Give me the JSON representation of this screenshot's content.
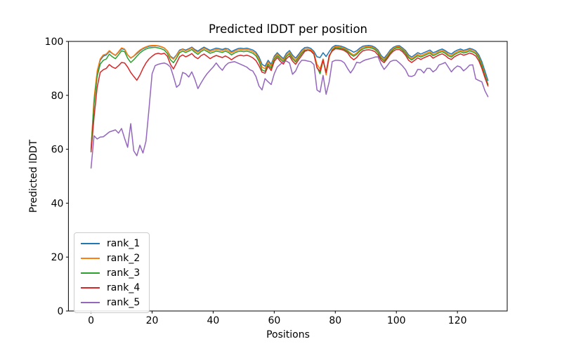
{
  "figure": {
    "title": "Predicted lDDT per position",
    "xlabel": "Positions",
    "ylabel": "Predicted lDDT"
  },
  "legend": {
    "items": [
      {
        "label": "rank_1",
        "color": "#1f77b4"
      },
      {
        "label": "rank_2",
        "color": "#ff7f0e"
      },
      {
        "label": "rank_3",
        "color": "#2ca02c"
      },
      {
        "label": "rank_4",
        "color": "#d62728"
      },
      {
        "label": "rank_5",
        "color": "#9467bd"
      }
    ]
  },
  "chart_data": {
    "type": "line",
    "title": "Predicted lDDT per position",
    "xlabel": "Positions",
    "ylabel": "Predicted lDDT",
    "xlim": [
      -7.4,
      136.3
    ],
    "ylim": [
      0,
      100
    ],
    "x_ticks": [
      0,
      20,
      40,
      60,
      80,
      100,
      120
    ],
    "y_ticks": [
      0,
      20,
      40,
      60,
      80,
      100
    ],
    "grid": false,
    "legend_position": "lower left",
    "x_start": 0,
    "x_step": 1,
    "series": [
      {
        "name": "rank_1",
        "color": "#1f77b4",
        "values": [
          60.0,
          78.0,
          88.0,
          93.0,
          94.5,
          95.0,
          96.3,
          95.5,
          94.8,
          96.0,
          97.3,
          97.0,
          95.0,
          93.8,
          94.5,
          95.5,
          96.5,
          97.3,
          97.8,
          98.2,
          98.3,
          98.4,
          98.3,
          98.0,
          97.5,
          96.5,
          94.5,
          93.7,
          95.0,
          96.8,
          97.2,
          96.8,
          97.3,
          97.9,
          97.0,
          96.4,
          97.2,
          97.9,
          97.3,
          96.7,
          97.1,
          97.5,
          97.3,
          97.0,
          97.4,
          97.2,
          96.2,
          96.8,
          97.3,
          97.5,
          97.3,
          97.5,
          97.2,
          96.8,
          96.0,
          94.3,
          91.5,
          90.8,
          93.0,
          91.5,
          94.5,
          95.8,
          94.6,
          93.6,
          95.6,
          96.6,
          94.9,
          93.8,
          95.2,
          96.8,
          97.7,
          97.8,
          97.4,
          96.3,
          94.3,
          94.0,
          95.8,
          94.4,
          96.2,
          97.8,
          98.5,
          98.4,
          98.2,
          97.8,
          97.2,
          96.7,
          96.0,
          96.5,
          97.5,
          98.2,
          98.4,
          98.5,
          98.3,
          97.8,
          96.8,
          94.8,
          93.8,
          95.2,
          96.8,
          97.8,
          98.3,
          98.4,
          97.6,
          96.6,
          95.0,
          94.2,
          95.0,
          95.8,
          95.3,
          95.8,
          96.3,
          96.8,
          95.8,
          96.2,
          96.8,
          97.2,
          96.6,
          95.8,
          95.3,
          96.2,
          96.8,
          97.2,
          96.7,
          97.0,
          97.4,
          97.1,
          96.5,
          95.0,
          92.5,
          89.0,
          85.5
        ]
      },
      {
        "name": "rank_2",
        "color": "#ff7f0e",
        "values": [
          60.5,
          79.0,
          89.0,
          93.5,
          95.0,
          95.3,
          96.6,
          95.6,
          94.9,
          96.2,
          97.6,
          97.2,
          95.0,
          93.9,
          94.6,
          95.8,
          96.8,
          97.5,
          98.0,
          98.4,
          98.5,
          98.5,
          98.4,
          98.1,
          97.6,
          96.4,
          94.2,
          93.4,
          94.8,
          96.5,
          97.0,
          96.5,
          97.0,
          97.6,
          96.6,
          95.9,
          96.8,
          97.5,
          96.9,
          96.2,
          96.6,
          97.0,
          96.8,
          96.5,
          97.0,
          96.5,
          95.7,
          96.3,
          96.8,
          97.0,
          96.8,
          97.0,
          96.7,
          96.2,
          95.4,
          93.5,
          90.5,
          89.9,
          92.4,
          90.8,
          94.0,
          95.3,
          94.0,
          93.0,
          95.0,
          96.0,
          94.2,
          93.0,
          94.6,
          96.2,
          97.2,
          97.3,
          96.9,
          95.7,
          91.5,
          89.8,
          93.5,
          87.6,
          94.0,
          97.2,
          98.1,
          98.0,
          97.8,
          97.4,
          96.7,
          95.7,
          95.0,
          95.7,
          96.9,
          97.7,
          98.0,
          98.1,
          97.9,
          97.4,
          96.3,
          94.2,
          93.2,
          94.7,
          96.3,
          97.4,
          98.0,
          98.0,
          97.2,
          96.1,
          94.4,
          93.6,
          94.4,
          95.2,
          94.7,
          95.2,
          95.7,
          96.2,
          95.2,
          95.7,
          96.3,
          96.7,
          96.1,
          95.2,
          94.7,
          95.6,
          96.2,
          96.7,
          96.2,
          96.5,
          97.0,
          96.6,
          96.0,
          94.3,
          91.5,
          87.8,
          84.0
        ]
      },
      {
        "name": "rank_3",
        "color": "#2ca02c",
        "values": [
          59.5,
          77.0,
          87.0,
          91.5,
          93.0,
          93.5,
          95.3,
          94.3,
          93.6,
          95.0,
          96.5,
          96.2,
          93.8,
          92.2,
          93.2,
          94.5,
          95.7,
          96.6,
          97.2,
          97.6,
          97.7,
          97.8,
          97.6,
          97.3,
          96.8,
          95.5,
          93.2,
          92.1,
          93.8,
          95.8,
          96.4,
          95.9,
          96.4,
          97.0,
          96.0,
          95.2,
          96.2,
          96.9,
          96.3,
          95.6,
          96.0,
          96.4,
          96.2,
          95.9,
          96.4,
          95.9,
          95.0,
          95.7,
          96.2,
          96.4,
          96.2,
          96.4,
          96.1,
          95.6,
          94.7,
          92.7,
          89.4,
          88.9,
          91.6,
          90.0,
          93.4,
          94.7,
          93.4,
          92.4,
          94.4,
          95.4,
          93.6,
          92.4,
          94.0,
          95.6,
          96.7,
          96.8,
          96.4,
          95.2,
          90.5,
          88.0,
          93.0,
          88.5,
          94.5,
          96.7,
          97.7,
          97.6,
          97.4,
          97.0,
          96.3,
          95.2,
          94.5,
          95.2,
          96.4,
          97.2,
          97.6,
          97.7,
          97.5,
          97.0,
          95.8,
          93.7,
          92.7,
          94.2,
          95.8,
          97.0,
          97.6,
          97.6,
          96.8,
          95.6,
          93.9,
          93.1,
          93.9,
          94.7,
          94.2,
          94.7,
          95.2,
          95.7,
          94.7,
          95.2,
          95.8,
          96.2,
          95.6,
          94.7,
          94.2,
          95.1,
          95.7,
          96.2,
          95.7,
          96.0,
          96.5,
          96.1,
          95.5,
          93.8,
          91.0,
          87.3,
          84.0
        ]
      },
      {
        "name": "rank_4",
        "color": "#d62728",
        "values": [
          59.0,
          72.0,
          83.0,
          88.5,
          89.5,
          90.0,
          91.4,
          90.5,
          90.0,
          91.0,
          92.2,
          92.0,
          90.5,
          88.5,
          87.0,
          85.6,
          87.5,
          90.0,
          92.0,
          93.5,
          94.5,
          95.3,
          95.6,
          95.3,
          95.6,
          94.5,
          91.5,
          89.8,
          92.0,
          94.3,
          95.0,
          94.3,
          94.8,
          95.5,
          94.3,
          93.6,
          94.7,
          95.3,
          94.5,
          93.6,
          94.3,
          94.8,
          94.4,
          94.0,
          94.6,
          94.0,
          93.2,
          94.0,
          94.6,
          94.9,
          94.6,
          94.9,
          94.5,
          93.9,
          92.9,
          91.0,
          88.6,
          88.2,
          90.8,
          89.2,
          92.6,
          94.0,
          92.6,
          91.6,
          93.6,
          94.6,
          92.7,
          91.5,
          93.2,
          94.8,
          96.3,
          96.8,
          96.5,
          95.3,
          90.2,
          88.9,
          93.2,
          88.4,
          94.8,
          96.4,
          97.3,
          97.2,
          97.0,
          96.6,
          95.8,
          94.2,
          93.2,
          94.0,
          95.5,
          96.5,
          96.8,
          96.9,
          96.7,
          96.2,
          95.0,
          93.0,
          92.1,
          93.6,
          95.2,
          96.4,
          97.0,
          97.0,
          96.2,
          94.9,
          93.0,
          92.2,
          93.0,
          93.9,
          93.3,
          93.9,
          94.4,
          94.9,
          93.8,
          94.4,
          95.0,
          95.4,
          94.8,
          93.8,
          93.3,
          94.3,
          94.9,
          95.4,
          94.9,
          95.2,
          95.7,
          95.3,
          94.6,
          92.8,
          90.0,
          86.5,
          83.5
        ]
      },
      {
        "name": "rank_5",
        "color": "#9467bd",
        "values": [
          53.0,
          65.0,
          63.8,
          64.5,
          64.6,
          65.5,
          66.4,
          66.8,
          67.2,
          66.0,
          67.7,
          64.0,
          60.7,
          69.5,
          59.4,
          57.6,
          61.5,
          58.6,
          63.0,
          75.0,
          88.0,
          91.0,
          91.5,
          91.8,
          92.0,
          91.5,
          90.5,
          87.0,
          83.0,
          84.0,
          88.5,
          88.0,
          86.8,
          88.7,
          86.0,
          82.5,
          84.5,
          86.4,
          88.0,
          89.3,
          90.5,
          92.0,
          90.5,
          89.3,
          91.0,
          92.0,
          92.3,
          92.5,
          92.0,
          91.5,
          91.0,
          90.5,
          89.5,
          89.0,
          87.0,
          83.5,
          82.0,
          86.2,
          85.0,
          84.0,
          88.0,
          90.5,
          91.5,
          92.5,
          92.7,
          92.0,
          87.8,
          89.0,
          91.5,
          93.0,
          93.0,
          92.7,
          92.5,
          91.4,
          82.0,
          81.2,
          87.4,
          80.4,
          85.0,
          92.5,
          93.0,
          93.0,
          92.8,
          92.0,
          90.0,
          88.3,
          90.0,
          92.3,
          92.0,
          92.7,
          93.2,
          93.5,
          93.8,
          94.2,
          94.3,
          91.5,
          89.6,
          91.0,
          92.5,
          93.0,
          93.0,
          92.0,
          90.9,
          89.5,
          87.2,
          87.0,
          87.5,
          89.6,
          89.5,
          88.3,
          90.0,
          90.0,
          88.7,
          89.5,
          91.3,
          91.7,
          92.2,
          90.5,
          88.7,
          90.0,
          90.9,
          90.5,
          89.1,
          90.0,
          91.2,
          91.3,
          86.1,
          85.5,
          85.0,
          81.7,
          79.5
        ]
      }
    ]
  }
}
